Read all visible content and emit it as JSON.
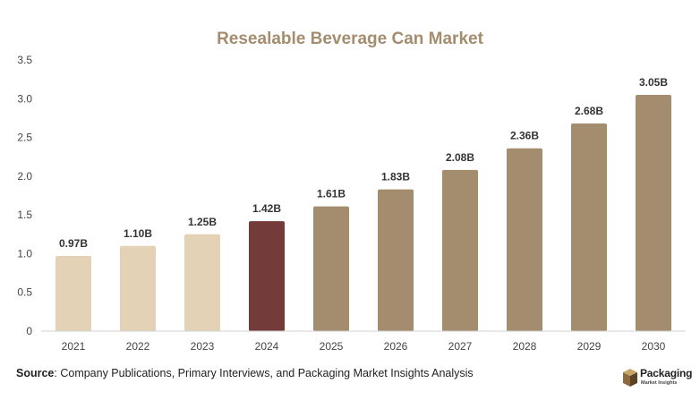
{
  "chart_data": {
    "type": "bar",
    "title": "Resealable Beverage Can Market",
    "categories": [
      "2021",
      "2022",
      "2023",
      "2024",
      "2025",
      "2026",
      "2027",
      "2028",
      "2029",
      "2030"
    ],
    "values": [
      0.97,
      1.1,
      1.25,
      1.42,
      1.61,
      1.83,
      2.08,
      2.36,
      2.68,
      3.05
    ],
    "data_labels": [
      "0.97B",
      "1.10B",
      "1.25B",
      "1.42B",
      "1.61B",
      "1.83B",
      "2.08B",
      "2.36B",
      "2.68B",
      "3.05B"
    ],
    "bar_colors": [
      "#e3d2b5",
      "#e3d2b5",
      "#e3d2b5",
      "#733b3a",
      "#a48c6e",
      "#a48c6e",
      "#a48c6e",
      "#a48c6e",
      "#a48c6e",
      "#a48c6e"
    ],
    "ylim": [
      0,
      3.5
    ],
    "yticks": [
      0,
      0.5,
      1.0,
      1.5,
      2.0,
      2.5,
      3.0,
      3.5
    ],
    "ytick_labels": [
      "0",
      "0.5",
      "1.0",
      "1.5",
      "2.0",
      "2.5",
      "3.0",
      "3.5"
    ],
    "xlabel": "",
    "ylabel": "",
    "grid": false
  },
  "source": {
    "label": "Source",
    "text": ": Company Publications, Primary Interviews, and Packaging Market Insights Analysis"
  },
  "brand": {
    "name": "Packaging",
    "tagline": "Market Insights",
    "icon": "box-icon"
  },
  "colors": {
    "title": "#a48c6e",
    "axis": "#cfcfcf"
  }
}
